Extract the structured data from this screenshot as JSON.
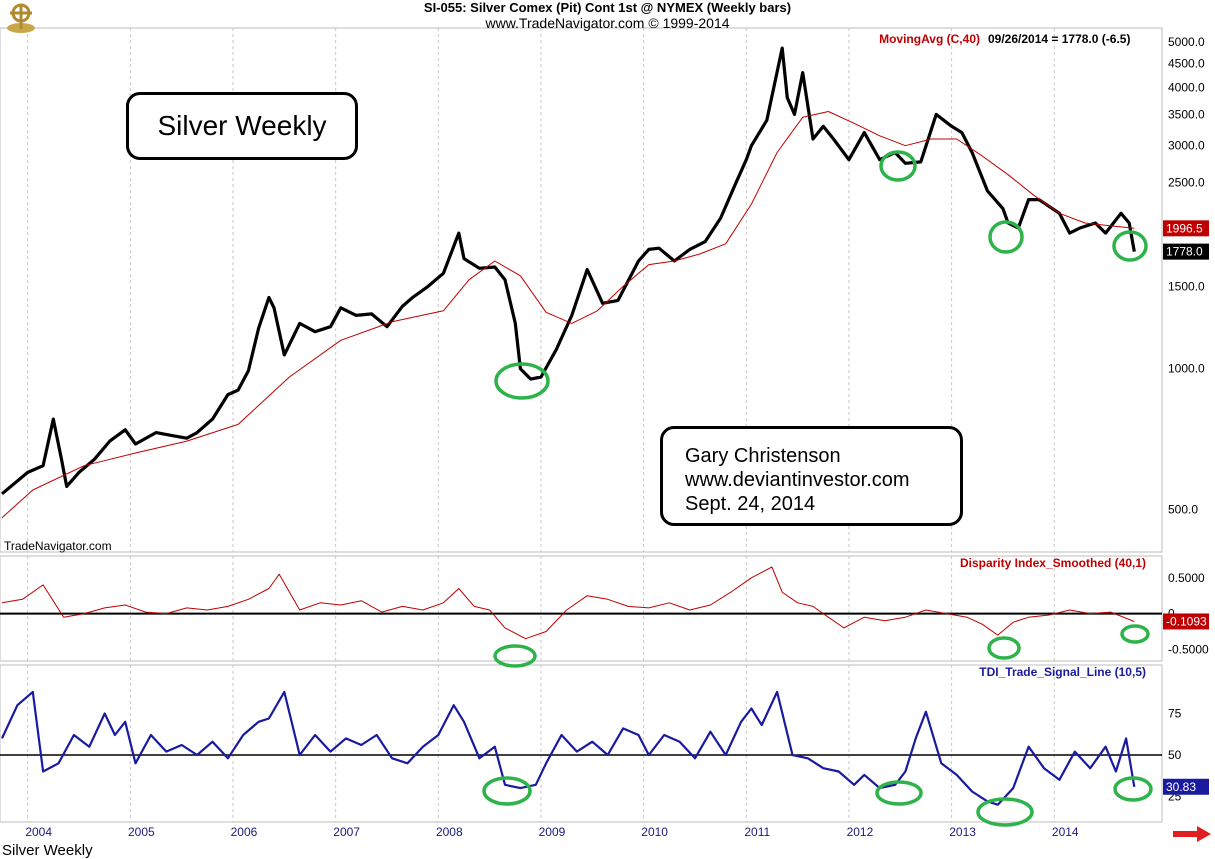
{
  "header": {
    "line1": "SI-055:  Silver Comex (Pit) Cont 1st @ NYMEX  (Weekly bars)",
    "line2": "www.TradeNavigator.com © 1999-2014"
  },
  "notes": {
    "title": "Silver Weekly",
    "author_line1": "Gary Christenson",
    "author_line2": "www.deviantinvestor.com",
    "author_line3": "Sept. 24, 2014"
  },
  "watermark": "TradeNavigator.com",
  "footer_label": "Silver Weekly",
  "colors": {
    "price": "#000000",
    "moving_avg": "#c00000",
    "disparity": "#c00000",
    "tdi": "#1a1aa0",
    "circles": "#2db34a",
    "grid": "#c8c8c8"
  },
  "chart_data": [
    {
      "type": "line",
      "name": "price_panel",
      "title": "MovingAvg (C,40)",
      "readout": "09/26/2014 = 1778.0 (-6.5)",
      "scale": "log",
      "ylim": [
        430,
        5200
      ],
      "yticks": [
        500.0,
        1000.0,
        1500.0,
        2000.0,
        2500.0,
        3000.0,
        3500.0,
        4000.0,
        4500.0,
        5000.0
      ],
      "ytick_labels": [
        "500.0",
        "1000.0",
        "1500.0",
        "2000.0",
        "2500.0",
        "3000.0",
        "3500.0",
        "4000.0",
        "4500.0",
        "5000.0"
      ],
      "last_price_label": "1778.0",
      "last_ma_label": "1996.5",
      "series": [
        {
          "role": "price",
          "x": [
            2003.7,
            2003.95,
            2004.1,
            2004.2,
            2004.28,
            2004.33,
            2004.45,
            2004.6,
            2004.75,
            2004.9,
            2005.0,
            2005.2,
            2005.35,
            2005.5,
            2005.6,
            2005.75,
            2005.9,
            2006.0,
            2006.1,
            2006.2,
            2006.3,
            2006.35,
            2006.45,
            2006.6,
            2006.75,
            2006.9,
            2007.0,
            2007.15,
            2007.3,
            2007.45,
            2007.6,
            2007.7,
            2007.85,
            2008.0,
            2008.15,
            2008.2,
            2008.35,
            2008.5,
            2008.6,
            2008.7,
            2008.75,
            2008.85,
            2008.95,
            2009.1,
            2009.25,
            2009.4,
            2009.55,
            2009.7,
            2009.9,
            2010.0,
            2010.1,
            2010.25,
            2010.4,
            2010.55,
            2010.7,
            2010.85,
            2010.95,
            2011.0,
            2011.15,
            2011.3,
            2011.35,
            2011.42,
            2011.5,
            2011.6,
            2011.7,
            2011.8,
            2011.95,
            2012.1,
            2012.25,
            2012.4,
            2012.5,
            2012.65,
            2012.8,
            2012.95,
            2013.05,
            2013.15,
            2013.3,
            2013.45,
            2013.5,
            2013.6,
            2013.7,
            2013.8,
            2014.0,
            2014.1,
            2014.2,
            2014.35,
            2014.45,
            2014.6,
            2014.68,
            2014.73
          ],
          "y": [
            540,
            600,
            620,
            780,
            640,
            560,
            600,
            640,
            700,
            740,
            690,
            730,
            720,
            710,
            730,
            780,
            880,
            900,
            990,
            1220,
            1420,
            1350,
            1070,
            1250,
            1200,
            1230,
            1350,
            1300,
            1310,
            1230,
            1360,
            1420,
            1500,
            1600,
            1950,
            1720,
            1640,
            1650,
            1550,
            1250,
            1000,
            950,
            960,
            1100,
            1300,
            1630,
            1380,
            1400,
            1700,
            1800,
            1810,
            1700,
            1800,
            1870,
            2100,
            2500,
            2800,
            3000,
            3400,
            4850,
            3800,
            3500,
            4300,
            3100,
            3300,
            3100,
            2800,
            3200,
            2800,
            2900,
            2750,
            2770,
            3500,
            3300,
            3200,
            2900,
            2400,
            2200,
            2050,
            2000,
            2300,
            2300,
            2150,
            1950,
            2000,
            2050,
            1950,
            2150,
            2050,
            1780
          ]
        },
        {
          "role": "moving_avg",
          "x": [
            2003.7,
            2004.0,
            2004.5,
            2005.0,
            2005.5,
            2006.0,
            2006.5,
            2007.0,
            2007.5,
            2008.0,
            2008.25,
            2008.5,
            2008.75,
            2009.0,
            2009.25,
            2009.5,
            2009.75,
            2010.0,
            2010.25,
            2010.5,
            2010.75,
            2011.0,
            2011.25,
            2011.5,
            2011.75,
            2012.0,
            2012.25,
            2012.5,
            2012.75,
            2013.0,
            2013.25,
            2013.5,
            2013.75,
            2014.0,
            2014.25,
            2014.5,
            2014.73
          ],
          "y": [
            480,
            550,
            620,
            660,
            700,
            760,
            960,
            1150,
            1260,
            1330,
            1550,
            1700,
            1580,
            1320,
            1250,
            1330,
            1500,
            1670,
            1700,
            1760,
            1850,
            2250,
            2900,
            3450,
            3550,
            3350,
            3150,
            3000,
            3100,
            3100,
            2850,
            2600,
            2350,
            2150,
            2050,
            2020,
            1996.5
          ]
        }
      ]
    },
    {
      "type": "line",
      "name": "disparity_panel",
      "title": "Disparity Index_Smoothed (40,1)",
      "ylim": [
        -0.62,
        0.72
      ],
      "yticks": [
        0.5,
        0,
        -0.5
      ],
      "ytick_labels": [
        "0.5000",
        "0",
        "-0.5000"
      ],
      "last_value_label": "-0.1093",
      "series": [
        {
          "role": "disparity",
          "x": [
            2003.7,
            2003.9,
            2004.1,
            2004.3,
            2004.5,
            2004.7,
            2004.9,
            2005.1,
            2005.3,
            2005.5,
            2005.7,
            2005.9,
            2006.1,
            2006.3,
            2006.4,
            2006.6,
            2006.8,
            2007.0,
            2007.2,
            2007.4,
            2007.6,
            2007.8,
            2008.0,
            2008.15,
            2008.3,
            2008.45,
            2008.6,
            2008.8,
            2009.0,
            2009.2,
            2009.4,
            2009.6,
            2009.8,
            2010.0,
            2010.2,
            2010.4,
            2010.6,
            2010.8,
            2011.0,
            2011.2,
            2011.3,
            2011.45,
            2011.6,
            2011.75,
            2011.9,
            2012.1,
            2012.3,
            2012.5,
            2012.7,
            2012.9,
            2013.1,
            2013.25,
            2013.4,
            2013.55,
            2013.7,
            2013.9,
            2014.1,
            2014.3,
            2014.5,
            2014.73
          ],
          "y": [
            0.15,
            0.2,
            0.4,
            -0.05,
            0.0,
            0.08,
            0.12,
            0.02,
            0.0,
            0.08,
            0.05,
            0.1,
            0.2,
            0.35,
            0.55,
            0.05,
            0.15,
            0.12,
            0.18,
            0.02,
            0.1,
            0.05,
            0.15,
            0.35,
            0.1,
            0.05,
            -0.2,
            -0.35,
            -0.25,
            0.05,
            0.25,
            0.2,
            0.1,
            0.08,
            0.15,
            0.05,
            0.12,
            0.3,
            0.5,
            0.65,
            0.3,
            0.15,
            0.1,
            -0.05,
            -0.2,
            -0.05,
            -0.1,
            -0.05,
            0.05,
            0.0,
            -0.05,
            -0.15,
            -0.3,
            -0.12,
            -0.05,
            -0.02,
            0.05,
            0.0,
            0.02,
            -0.11
          ]
        }
      ]
    },
    {
      "type": "line",
      "name": "tdi_panel",
      "title": "TDI_Trade_Signal_Line (10,5)",
      "ylim": [
        12,
        100
      ],
      "yticks": [
        75,
        50,
        25
      ],
      "ytick_labels": [
        "75",
        "50",
        "25"
      ],
      "last_value_label": "30.83",
      "series": [
        {
          "role": "tdi",
          "x": [
            2003.7,
            2003.85,
            2004.0,
            2004.1,
            2004.25,
            2004.4,
            2004.55,
            2004.7,
            2004.8,
            2004.9,
            2005.0,
            2005.15,
            2005.3,
            2005.45,
            2005.6,
            2005.75,
            2005.9,
            2006.05,
            2006.2,
            2006.3,
            2006.45,
            2006.6,
            2006.75,
            2006.9,
            2007.05,
            2007.2,
            2007.35,
            2007.5,
            2007.65,
            2007.8,
            2007.95,
            2008.1,
            2008.2,
            2008.35,
            2008.5,
            2008.6,
            2008.75,
            2008.9,
            2009.0,
            2009.15,
            2009.3,
            2009.45,
            2009.6,
            2009.75,
            2009.9,
            2010.0,
            2010.15,
            2010.3,
            2010.45,
            2010.6,
            2010.75,
            2010.9,
            2011.0,
            2011.1,
            2011.25,
            2011.4,
            2011.55,
            2011.7,
            2011.85,
            2012.0,
            2012.1,
            2012.25,
            2012.4,
            2012.5,
            2012.6,
            2012.7,
            2012.85,
            2013.0,
            2013.15,
            2013.3,
            2013.4,
            2013.55,
            2013.7,
            2013.85,
            2014.0,
            2014.15,
            2014.3,
            2014.45,
            2014.55,
            2014.65,
            2014.73
          ],
          "y": [
            60,
            80,
            88,
            40,
            45,
            62,
            55,
            75,
            62,
            70,
            45,
            62,
            52,
            56,
            50,
            58,
            48,
            62,
            70,
            72,
            88,
            50,
            62,
            52,
            60,
            56,
            62,
            48,
            45,
            55,
            62,
            80,
            70,
            48,
            55,
            32,
            30,
            32,
            45,
            62,
            52,
            58,
            50,
            66,
            62,
            50,
            62,
            58,
            48,
            64,
            50,
            70,
            78,
            68,
            88,
            50,
            48,
            42,
            40,
            32,
            38,
            30,
            32,
            40,
            60,
            76,
            45,
            38,
            28,
            22,
            20,
            30,
            55,
            42,
            35,
            52,
            42,
            55,
            40,
            60,
            30.83
          ]
        }
      ]
    }
  ],
  "x_axis": {
    "ticks": [
      "2004",
      "2005",
      "2006",
      "2007",
      "2008",
      "2009",
      "2010",
      "2011",
      "2012",
      "2013",
      "2014"
    ]
  }
}
